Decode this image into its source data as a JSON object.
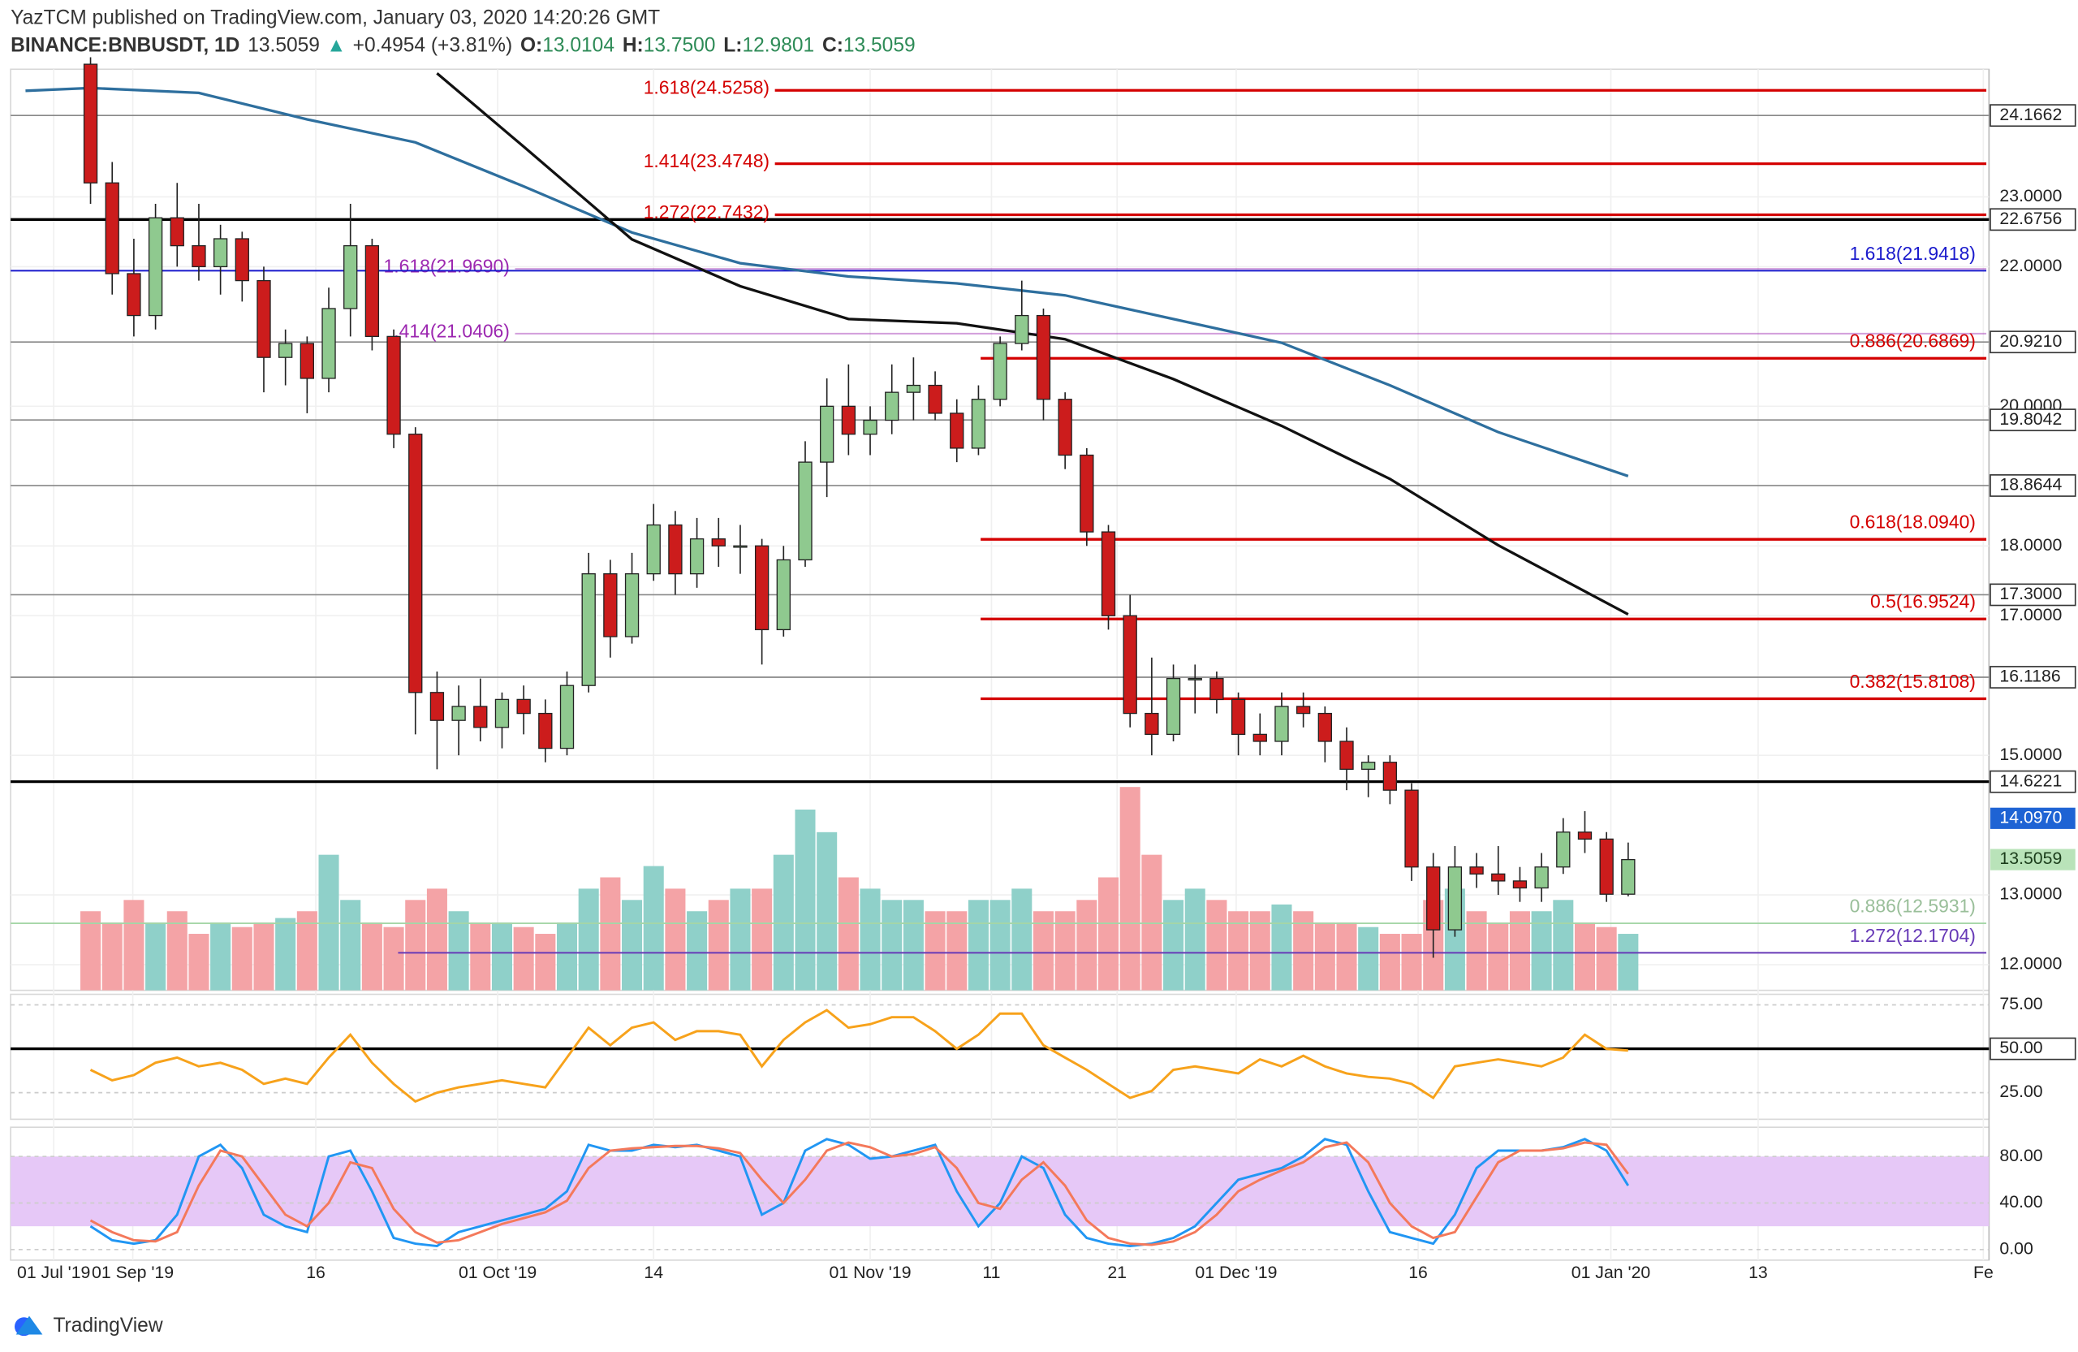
{
  "header": {
    "publisher_line": "YazTCM published on TradingView.com, January 03, 2020 14:20:26 GMT",
    "symbol": "BINANCE:BNBUSDT, 1D",
    "last": "13.5059",
    "arrow": "▲",
    "change": "+0.4954 (+3.81%)",
    "o_label": "O:",
    "open": "13.0104",
    "h_label": "H:",
    "high": "13.7500",
    "l_label": "L:",
    "low": "12.9801",
    "c_label": "C:",
    "close": "13.5059"
  },
  "footer": {
    "brand": "TradingView"
  },
  "chart_data": [
    {
      "type": "candlestick",
      "up_color": "#8fc98f",
      "down_color": "#cc1c1c",
      "xlim": [
        -3.69,
        87.66
      ],
      "xticks": [
        {
          "value": -1.7,
          "label": "01 Jul '19"
        },
        {
          "value": 1.95,
          "label": "01 Sep '19"
        },
        {
          "value": 10.4,
          "label": "16"
        },
        {
          "value": 18.8,
          "label": "01 Oct '19"
        },
        {
          "value": 26.0,
          "label": "14"
        },
        {
          "value": 36.0,
          "label": "01 Nov '19"
        },
        {
          "value": 41.6,
          "label": "11"
        },
        {
          "value": 47.4,
          "label": "21"
        },
        {
          "value": 52.9,
          "label": "01 Dec '19"
        },
        {
          "value": 61.3,
          "label": "16"
        },
        {
          "value": 70.2,
          "label": "01 Jan '20"
        },
        {
          "value": 77.0,
          "label": "13"
        },
        {
          "value": 87.4,
          "label": "Fe"
        }
      ],
      "ylim": [
        11.633,
        24.828
      ],
      "yticks": [
        {
          "value": 12,
          "label": "12.0000"
        },
        {
          "value": 13,
          "label": "13.0000"
        },
        {
          "value": 15,
          "label": "15.0000"
        },
        {
          "value": 17,
          "label": "17.0000"
        },
        {
          "value": 18,
          "label": "18.0000"
        },
        {
          "value": 20,
          "label": "20.0000"
        },
        {
          "value": 22,
          "label": "22.0000"
        },
        {
          "value": 23,
          "label": "23.0000"
        }
      ],
      "open": [
        24.9,
        23.2,
        21.9,
        21.3,
        22.7,
        22.3,
        22.0,
        22.4,
        21.8,
        20.7,
        20.9,
        20.4,
        21.4,
        22.3,
        21.0,
        19.6,
        15.9,
        15.5,
        15.7,
        15.4,
        15.8,
        15.6,
        15.1,
        16.0,
        17.6,
        16.7,
        17.6,
        18.3,
        17.6,
        18.1,
        18.0,
        18.0,
        16.8,
        17.8,
        19.2,
        20.0,
        19.6,
        19.8,
        20.2,
        20.3,
        19.9,
        19.4,
        20.1,
        20.9,
        21.3,
        20.1,
        19.3,
        18.2,
        17.0,
        15.6,
        15.3,
        16.1,
        16.1,
        15.8,
        15.3,
        15.2,
        15.7,
        15.6,
        15.2,
        14.8,
        14.9,
        14.5,
        13.4,
        12.5,
        13.4,
        13.3,
        13.2,
        13.1,
        13.4,
        13.9,
        13.8,
        13.0104
      ],
      "high": [
        25.0,
        23.5,
        22.4,
        22.9,
        23.2,
        22.9,
        22.6,
        22.5,
        22.0,
        21.1,
        21.0,
        21.7,
        22.9,
        22.4,
        21.1,
        19.7,
        16.2,
        16.0,
        16.1,
        15.9,
        16.0,
        15.8,
        16.2,
        17.9,
        17.8,
        17.9,
        18.6,
        18.5,
        18.4,
        18.4,
        18.3,
        18.1,
        18.0,
        19.5,
        20.4,
        20.6,
        20.0,
        20.6,
        20.7,
        20.5,
        20.1,
        20.3,
        21.0,
        21.8,
        21.4,
        20.2,
        19.4,
        18.3,
        17.3,
        16.4,
        16.3,
        16.3,
        16.2,
        15.9,
        15.6,
        15.9,
        15.9,
        15.7,
        15.4,
        15.0,
        15.0,
        14.6,
        13.6,
        13.7,
        13.6,
        13.7,
        13.4,
        13.6,
        14.1,
        14.2,
        13.9,
        13.75
      ],
      "low": [
        22.9,
        21.6,
        21.0,
        21.1,
        22.0,
        21.8,
        21.6,
        21.5,
        20.2,
        20.3,
        19.9,
        20.2,
        21.0,
        20.8,
        19.4,
        15.3,
        14.8,
        15.0,
        15.2,
        15.1,
        15.3,
        14.9,
        15.0,
        15.9,
        16.4,
        16.6,
        17.5,
        17.3,
        17.4,
        17.7,
        17.6,
        16.3,
        16.7,
        17.7,
        18.7,
        19.3,
        19.3,
        19.6,
        19.8,
        19.8,
        19.2,
        19.3,
        20.0,
        20.8,
        19.8,
        19.1,
        18.0,
        16.8,
        15.4,
        15.0,
        15.2,
        15.6,
        15.6,
        15.0,
        15.0,
        15.0,
        15.4,
        14.9,
        14.5,
        14.4,
        14.3,
        13.2,
        12.1,
        12.4,
        13.1,
        13.0,
        12.9,
        12.9,
        13.3,
        13.6,
        12.9,
        12.9801
      ],
      "close": [
        23.2,
        21.9,
        21.3,
        22.7,
        22.3,
        22.0,
        22.4,
        21.8,
        20.7,
        20.9,
        20.4,
        21.4,
        22.3,
        21.0,
        19.6,
        15.9,
        15.5,
        15.7,
        15.4,
        15.8,
        15.6,
        15.1,
        16.0,
        17.6,
        16.7,
        17.6,
        18.3,
        17.6,
        18.1,
        18.0,
        18.0,
        16.8,
        17.8,
        19.2,
        20.0,
        19.6,
        19.8,
        20.2,
        20.3,
        19.9,
        19.4,
        20.1,
        20.9,
        21.3,
        20.1,
        19.3,
        18.2,
        17.0,
        15.6,
        15.3,
        16.1,
        16.1,
        15.8,
        15.3,
        15.2,
        15.7,
        15.6,
        15.2,
        14.8,
        14.9,
        14.5,
        13.4,
        12.5,
        13.4,
        13.3,
        13.2,
        13.1,
        13.4,
        13.9,
        13.8,
        13.01,
        13.5059
      ],
      "volume_ylim": [
        0,
        100
      ],
      "volume": [
        35,
        30,
        40,
        30,
        35,
        25,
        30,
        28,
        30,
        32,
        35,
        60,
        40,
        30,
        28,
        40,
        45,
        35,
        30,
        30,
        28,
        25,
        30,
        45,
        50,
        40,
        55,
        45,
        35,
        40,
        45,
        45,
        60,
        80,
        70,
        50,
        45,
        40,
        40,
        35,
        35,
        40,
        40,
        45,
        35,
        35,
        40,
        50,
        90,
        60,
        40,
        45,
        40,
        35,
        35,
        38,
        35,
        30,
        30,
        28,
        25,
        25,
        40,
        45,
        35,
        30,
        35,
        35,
        40,
        30,
        28,
        25
      ],
      "volume_up_color": "#8fd0c9",
      "volume_down_color": "#f4a3a6",
      "moving_averages": [
        {
          "color": "#2e6f9e",
          "x": [
            -3,
            0,
            5,
            10,
            15,
            20,
            25,
            30,
            35,
            40,
            45,
            50,
            55,
            60,
            65,
            71
          ],
          "values": [
            24.52,
            24.56,
            24.49,
            24.11,
            23.78,
            23.15,
            22.49,
            22.05,
            21.86,
            21.76,
            21.59,
            21.25,
            20.91,
            20.3,
            19.63,
            19.0
          ]
        },
        {
          "color": "#111111",
          "x": [
            16,
            20,
            25,
            30,
            35,
            40,
            45,
            50,
            55,
            60,
            65,
            71
          ],
          "values": [
            24.77,
            23.72,
            22.39,
            21.72,
            21.25,
            21.19,
            20.96,
            20.39,
            19.72,
            18.96,
            18.01,
            17.02
          ]
        }
      ],
      "hlines": [
        {
          "value": 24.1662,
          "label": "24.1662",
          "color": "#888888",
          "width": 1
        },
        {
          "value": 22.6756,
          "label": "22.6756",
          "color": "#000000",
          "width": 2
        },
        {
          "value": 20.921,
          "label": "20.9210",
          "color": "#888888",
          "width": 1
        },
        {
          "value": 19.8042,
          "label": "19.8042",
          "color": "#888888",
          "width": 1
        },
        {
          "value": 18.8644,
          "label": "18.8644",
          "color": "#888888",
          "width": 1
        },
        {
          "value": 17.3,
          "label": "17.3000",
          "color": "#888888",
          "width": 1
        },
        {
          "value": 16.1186,
          "label": "16.1186",
          "color": "#888888",
          "width": 1
        },
        {
          "value": 14.6221,
          "label": "14.6221",
          "color": "#000000",
          "width": 2
        }
      ],
      "levels": [
        {
          "label": "1.618(24.5258)",
          "value": 24.5258,
          "color": "#d40000",
          "x0": 31.6,
          "label_position": "left"
        },
        {
          "label": "1.414(23.4748)",
          "value": 23.4748,
          "color": "#d40000",
          "x0": 31.6,
          "label_position": "left"
        },
        {
          "label": "1.272(22.7432)",
          "value": 22.7432,
          "color": "#d40000",
          "x0": 31.6,
          "label_position": "left"
        },
        {
          "label": "1.618(21.9690)",
          "value": 21.969,
          "color": "#9c27b0",
          "x0": 19.6,
          "label_position": "left"
        },
        {
          "label": "1.618(21.9418)",
          "value": 21.9418,
          "color": "#1a1acc",
          "x0": -3.69,
          "label_position": "right"
        },
        {
          "label": ".414(21.0406)",
          "value": 21.0406,
          "color": "#9c27b0",
          "x0": 19.6,
          "label_position": "left"
        },
        {
          "label": "0.886(20.6869)",
          "value": 20.6869,
          "color": "#d40000",
          "x0": 41.1,
          "label_position": "right"
        },
        {
          "label": "0.618(18.0940)",
          "value": 18.094,
          "color": "#d40000",
          "x0": 41.1,
          "label_position": "right"
        },
        {
          "label": "0.5(16.9524)",
          "value": 16.9524,
          "color": "#d40000",
          "x0": 41.1,
          "label_position": "right"
        },
        {
          "label": "0.382(15.8108)",
          "value": 15.8108,
          "color": "#d40000",
          "x0": 41.1,
          "label_position": "right"
        },
        {
          "label": "0.886(12.5931)",
          "value": 12.5931,
          "color": "#a5d6a7",
          "x0": -3.69,
          "label_position": "right"
        },
        {
          "label": "1.272(12.1704)",
          "value": 12.1704,
          "color": "#673ab7",
          "x0": 14.2,
          "label_position": "right"
        }
      ],
      "price_labels": [
        {
          "value": 14.097,
          "label": "14.0970",
          "color": "#1e63d4",
          "text_color": "#ffffff"
        },
        {
          "value": 13.5059,
          "label": "13.5059",
          "color": "#b9e3b9",
          "text_color": "#1b3d1b"
        }
      ]
    },
    {
      "type": "line",
      "ylim": [
        9.85,
        81
      ],
      "yticks": [
        {
          "value": 75,
          "label": "75.00"
        },
        {
          "value": 50,
          "label": "50.00"
        },
        {
          "value": 25,
          "label": "25.00"
        }
      ],
      "series": [
        {
          "color": "#f7a21b",
          "values": [
            38,
            32,
            35,
            42,
            45,
            40,
            42,
            38,
            30,
            33,
            30,
            45,
            58,
            42,
            30,
            20,
            25,
            28,
            30,
            32,
            30,
            28,
            45,
            62,
            52,
            62,
            65,
            55,
            60,
            60,
            58,
            40,
            55,
            65,
            72,
            62,
            64,
            68,
            68,
            60,
            50,
            58,
            70,
            70,
            52,
            45,
            38,
            30,
            22,
            26,
            38,
            40,
            38,
            36,
            44,
            40,
            46,
            40,
            36,
            34,
            33,
            30,
            22,
            40,
            42,
            44,
            42,
            40,
            45,
            58,
            50,
            49
          ]
        }
      ]
    },
    {
      "type": "line",
      "ylim": [
        -9.14,
        105.14
      ],
      "band": [
        20,
        80
      ],
      "band_color": "#e6c8f7",
      "yticks": [
        {
          "value": 80,
          "label": "80.00"
        },
        {
          "value": 40,
          "label": "40.00"
        },
        {
          "value": 0,
          "label": "0.00"
        }
      ],
      "series": [
        {
          "color": "#2196f3",
          "values": [
            20,
            8,
            5,
            8,
            30,
            80,
            90,
            70,
            30,
            20,
            15,
            80,
            85,
            50,
            10,
            5,
            3,
            15,
            20,
            25,
            30,
            35,
            50,
            90,
            85,
            85,
            90,
            88,
            90,
            85,
            80,
            30,
            40,
            85,
            95,
            90,
            78,
            80,
            85,
            90,
            50,
            20,
            40,
            80,
            70,
            30,
            10,
            5,
            3,
            5,
            10,
            20,
            40,
            60,
            65,
            70,
            80,
            95,
            90,
            50,
            15,
            10,
            5,
            30,
            70,
            85,
            85,
            85,
            88,
            95,
            85,
            55
          ]
        },
        {
          "color": "#f4795b",
          "values": [
            25,
            15,
            8,
            7,
            15,
            55,
            85,
            80,
            55,
            30,
            20,
            40,
            75,
            70,
            35,
            15,
            6,
            8,
            15,
            22,
            27,
            32,
            42,
            70,
            85,
            87,
            88,
            89,
            89,
            87,
            83,
            60,
            40,
            60,
            85,
            92,
            88,
            80,
            82,
            88,
            70,
            40,
            35,
            60,
            75,
            55,
            25,
            10,
            5,
            4,
            7,
            15,
            30,
            50,
            60,
            68,
            75,
            88,
            92,
            75,
            40,
            20,
            10,
            15,
            45,
            75,
            85,
            85,
            87,
            92,
            90,
            65
          ]
        }
      ]
    }
  ]
}
